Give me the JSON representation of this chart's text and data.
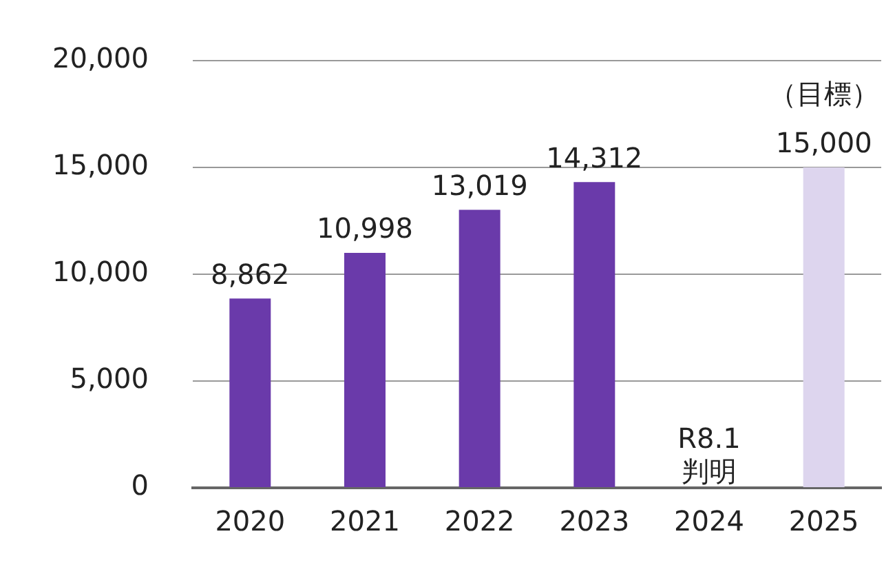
{
  "chart_data": {
    "type": "bar",
    "categories": [
      "2020",
      "2021",
      "2022",
      "2023",
      "2024",
      "2025"
    ],
    "values": [
      8862,
      10998,
      13019,
      14312,
      null,
      15000
    ],
    "value_labels": [
      "8,862",
      "10,998",
      "13,019",
      "14,312",
      null,
      "15,000"
    ],
    "colors": [
      "#6a3aaa",
      "#6a3aaa",
      "#6a3aaa",
      "#6a3aaa",
      "#6a3aaa",
      "#ddd5ee"
    ],
    "ylim": [
      0,
      20000
    ],
    "yticks": [
      0,
      {
        "value": 5000,
        "label": "5,000"
      },
      {
        "value": 10000,
        "label": "10,000"
      },
      {
        "value": 15000,
        "label": "15,000"
      },
      {
        "value": 20000,
        "label": "20,000"
      }
    ],
    "grid": "y",
    "legend": false,
    "annotations": [
      "（目標）",
      "R8.1\n判明"
    ]
  }
}
